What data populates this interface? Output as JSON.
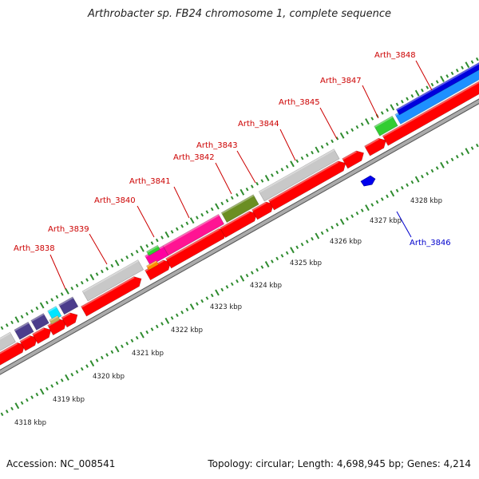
{
  "title": "Arthrobacter sp. FB24 chromosome 1, complete sequence",
  "footer": {
    "accession": "Accession: NC_008541",
    "summary": "Topology: circular; Length: 4,698,945 bp; Genes: 4,214"
  },
  "colors": {
    "cds": "#ff0000",
    "label_forward": "#cc0000",
    "label_reverse": "#0000cc",
    "backbone": "#aaaaaa",
    "tick": "#2e8b2e"
  },
  "scale": {
    "tick_labels": [
      "4318 kbp",
      "4319 kbp",
      "4320 kbp",
      "4321 kbp",
      "4322 kbp",
      "4323 kbp",
      "4324 kbp",
      "4325 kbp",
      "4326 kbp",
      "4327 kbp",
      "4328 kbp"
    ]
  },
  "gene_labels": [
    "Arth_3838",
    "Arth_3839",
    "Arth_3840",
    "Arth_3841",
    "Arth_3842",
    "Arth_3843",
    "Arth_3844",
    "Arth_3845",
    "Arth_3847",
    "Arth_3848",
    "Arth_3846"
  ]
}
